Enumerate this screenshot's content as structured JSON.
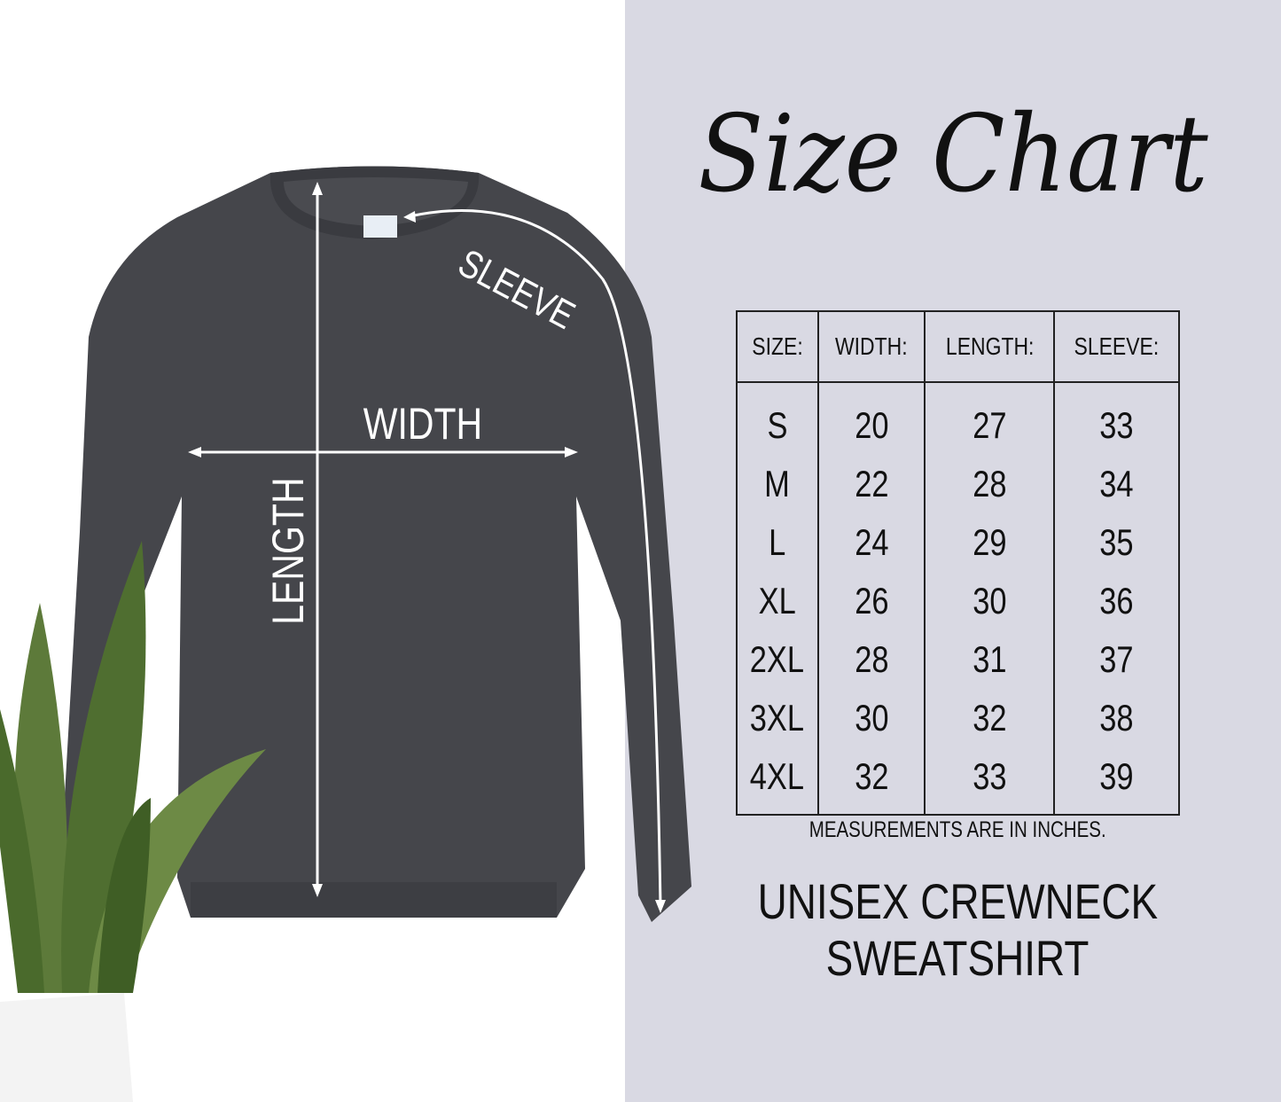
{
  "title": "Size Chart",
  "table": {
    "headers": [
      "SIZE:",
      "WIDTH:",
      "LENGTH:",
      "SLEEVE:"
    ],
    "rows": [
      [
        "S",
        "20",
        "27",
        "33"
      ],
      [
        "M",
        "22",
        "28",
        "34"
      ],
      [
        "L",
        "24",
        "29",
        "35"
      ],
      [
        "XL",
        "26",
        "30",
        "36"
      ],
      [
        "2XL",
        "28",
        "31",
        "37"
      ],
      [
        "3XL",
        "30",
        "32",
        "38"
      ],
      [
        "4XL",
        "32",
        "33",
        "39"
      ]
    ]
  },
  "note": "MEASUREMENTS ARE IN INCHES.",
  "product": {
    "line1": "UNISEX CREWNECK",
    "line2": "SWEATSHIRT"
  },
  "diagram": {
    "width_label": "WIDTH",
    "length_label": "LENGTH",
    "sleeve_label": "SLEEVE"
  },
  "colors": {
    "panel": "#d9d9e3",
    "garment": "#45464b",
    "leaf": "#5d7a3a"
  }
}
